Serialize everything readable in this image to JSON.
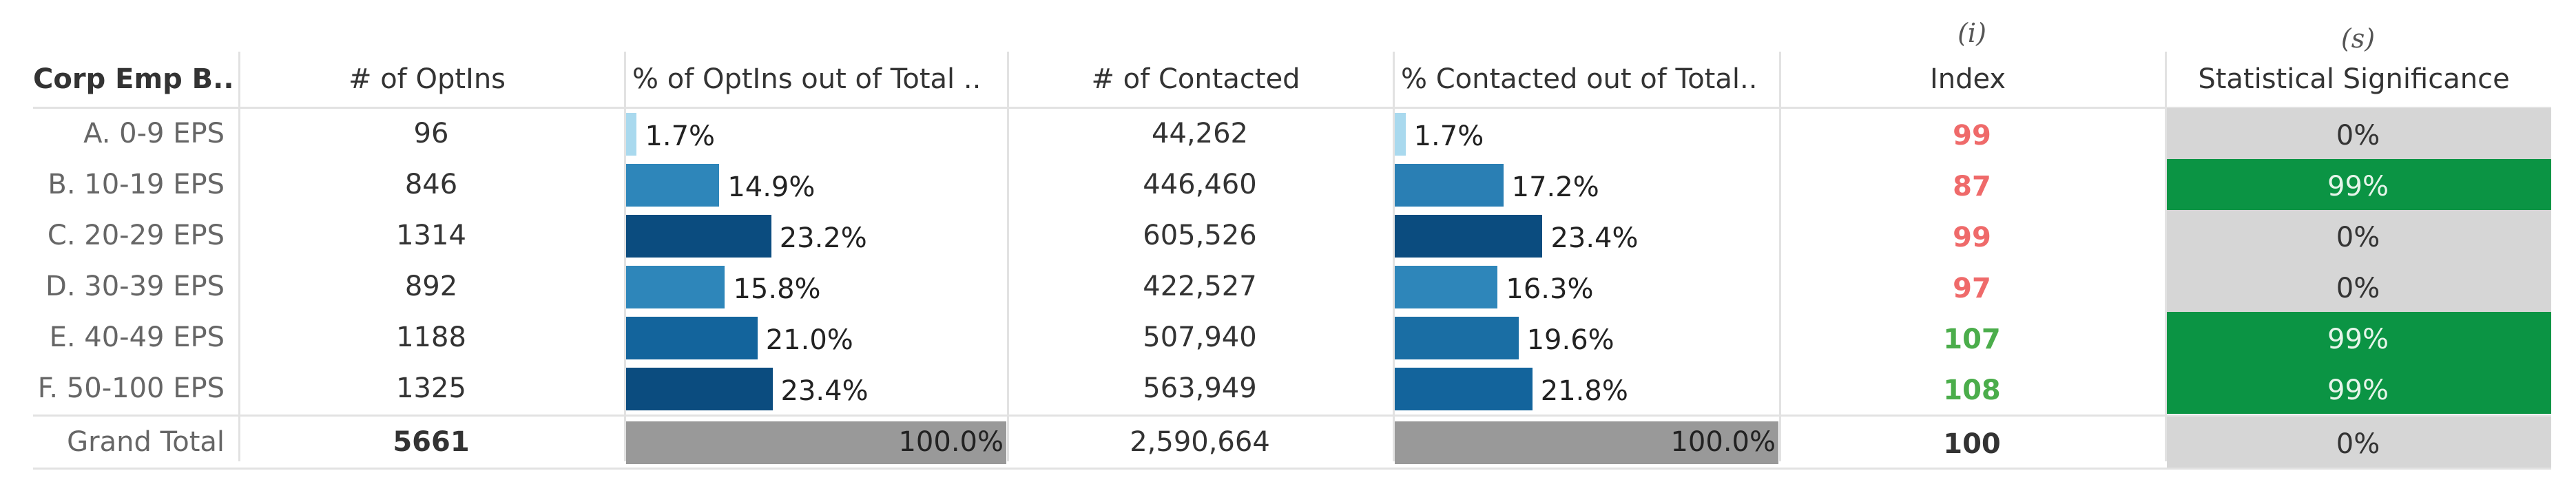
{
  "header": {
    "columns": [
      "Corp Emp B..",
      "# of OptIns",
      "% of OptIns out of Total ..",
      "# of Contacted",
      "% Contacted out of Total..",
      "Index",
      "Statistical Significance"
    ],
    "index_note": "(i)",
    "significance_note": "(s)"
  },
  "table": {
    "rows": [
      {
        "label": "A. 0-9 EPS",
        "optins": "96",
        "pct_optins": {
          "value": 1.7,
          "label": "1.7%",
          "color": "#a9d9ee"
        },
        "contacted": "44,262",
        "pct_contacted": {
          "value": 1.7,
          "label": "1.7%",
          "color": "#a9d9ee"
        },
        "index": {
          "text": "99",
          "color": "#ef6a6a"
        },
        "significance": {
          "text": "0%",
          "fill": "#d6d6d6"
        }
      },
      {
        "label": "B. 10-19 EPS",
        "optins": "846",
        "pct_optins": {
          "value": 14.9,
          "label": "14.9%",
          "color": "#2e86ba"
        },
        "contacted": "446,460",
        "pct_contacted": {
          "value": 17.2,
          "label": "17.2%",
          "color": "#2a7fb4"
        },
        "index": {
          "text": "87",
          "color": "#ef6a6a"
        },
        "significance": {
          "text": "99%",
          "fill": "#0b9444"
        }
      },
      {
        "label": "C. 20-29 EPS",
        "optins": "1314",
        "pct_optins": {
          "value": 23.2,
          "label": "23.2%",
          "color": "#0b4c7f"
        },
        "contacted": "605,526",
        "pct_contacted": {
          "value": 23.4,
          "label": "23.4%",
          "color": "#0b4c7f"
        },
        "index": {
          "text": "99",
          "color": "#ef6a6a"
        },
        "significance": {
          "text": "0%",
          "fill": "#d6d6d6"
        }
      },
      {
        "label": "D. 30-39 EPS",
        "optins": "892",
        "pct_optins": {
          "value": 15.8,
          "label": "15.8%",
          "color": "#2e86ba"
        },
        "contacted": "422,527",
        "pct_contacted": {
          "value": 16.3,
          "label": "16.3%",
          "color": "#2e86ba"
        },
        "index": {
          "text": "97",
          "color": "#ef6a6a"
        },
        "significance": {
          "text": "0%",
          "fill": "#d6d6d6"
        }
      },
      {
        "label": "E. 40-49 EPS",
        "optins": "1188",
        "pct_optins": {
          "value": 21.0,
          "label": "21.0%",
          "color": "#13649c"
        },
        "contacted": "507,940",
        "pct_contacted": {
          "value": 19.6,
          "label": "19.6%",
          "color": "#1a6ea4"
        },
        "index": {
          "text": "107",
          "color": "#4bad4b"
        },
        "significance": {
          "text": "99%",
          "fill": "#0b9444"
        }
      },
      {
        "label": "F. 50-100 EPS",
        "optins": "1325",
        "pct_optins": {
          "value": 23.4,
          "label": "23.4%",
          "color": "#0b4c7f"
        },
        "contacted": "563,949",
        "pct_contacted": {
          "value": 21.8,
          "label": "21.8%",
          "color": "#13649c"
        },
        "index": {
          "text": "108",
          "color": "#4bad4b"
        },
        "significance": {
          "text": "99%",
          "fill": "#0b9444"
        }
      }
    ],
    "total": {
      "label": "Grand Total",
      "optins": "5661",
      "pct_optins": {
        "value": 100.0,
        "label": "100.0%",
        "color": "#999999"
      },
      "contacted": "2,590,664",
      "pct_contacted": {
        "value": 100.0,
        "label": "100.0%",
        "color": "#999999"
      },
      "index": {
        "text": "100",
        "color": "#333333"
      },
      "significance": {
        "text": "0%",
        "fill": "#d6d6d6"
      }
    }
  }
}
